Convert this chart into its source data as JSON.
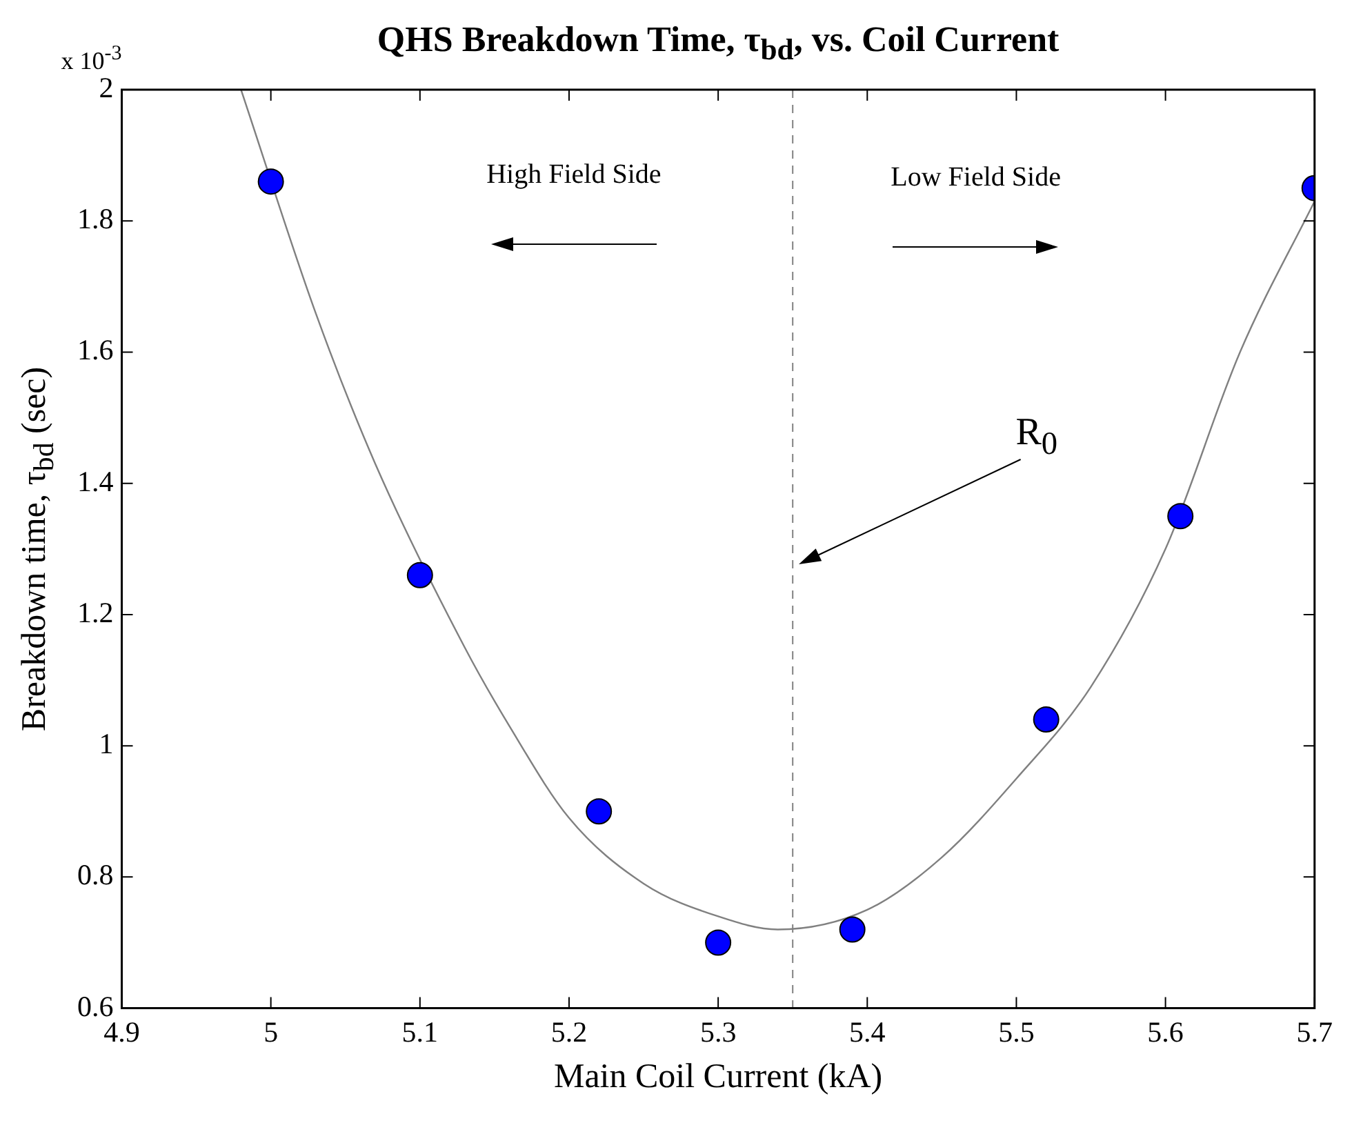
{
  "chart_data": {
    "type": "scatter",
    "title": "QHS Breakdown Time, τ$_{bd}$, vs. Coil Current",
    "xlabel": "Main Coil Current (kA)",
    "ylabel": "Breakdown time, τ$_{bd}$ (sec)",
    "xlim": [
      4.9,
      5.7
    ],
    "xticks": [
      4.9,
      5,
      5.1,
      5.2,
      5.3,
      5.4,
      5.5,
      5.6,
      5.7
    ],
    "ylim": [
      0.6,
      2
    ],
    "yticks": [
      0.6,
      0.8,
      1,
      1.2,
      1.4,
      1.6,
      1.8,
      2
    ],
    "series": [
      {
        "color": "#0000ff",
        "marker": "circle",
        "x": [
          5.0,
          5.1,
          5.22,
          5.3,
          5.39,
          5.52,
          5.61,
          5.7
        ],
        "values": [
          1.86,
          1.26,
          0.9,
          0.7,
          0.72,
          1.04,
          1.35,
          1.85
        ]
      },
      {
        "type": "line",
        "color": "#808080",
        "marker": "none",
        "line_style": "solid",
        "x": [
          4.98,
          5.03,
          5.07,
          5.13,
          5.16,
          5.2,
          5.25,
          5.3,
          5.34,
          5.4,
          5.45,
          5.5,
          5.55,
          5.6,
          5.65,
          5.7
        ],
        "values": [
          2.0,
          1.66,
          1.43,
          1.15,
          1.03,
          0.89,
          0.79,
          0.74,
          0.72,
          0.75,
          0.83,
          0.95,
          1.09,
          1.3,
          1.6,
          1.83
        ]
      }
    ],
    "ref_lines": [
      {
        "axis": "x",
        "value": 5.35,
        "color": "#808080",
        "line_style": "dashed"
      }
    ],
    "annotations": [
      "x 10$^{-3}$",
      "High Field Side",
      "Low Field Side",
      "R$_{0}$"
    ]
  }
}
